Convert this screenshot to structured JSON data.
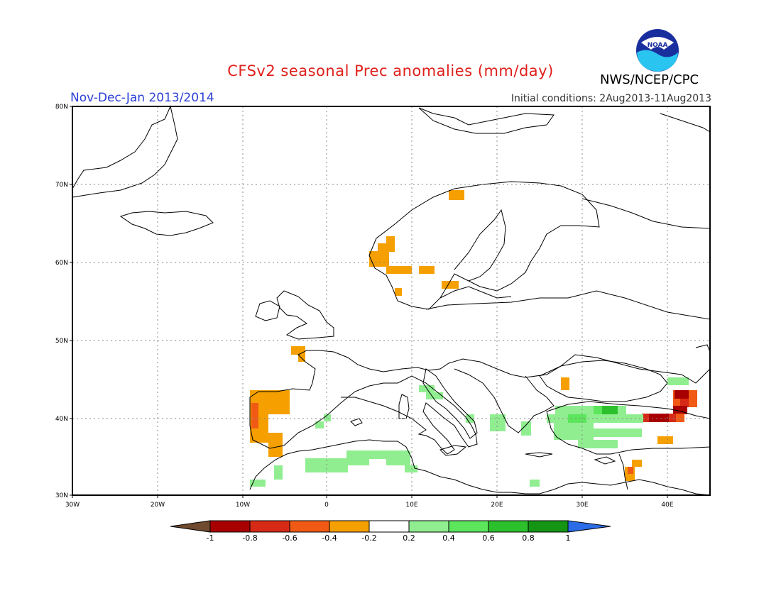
{
  "header": {
    "title": "CFSv2 seasonal Prec anomalies (mm/day)",
    "period": "Nov-Dec-Jan 2013/2014",
    "initial_conditions": "Initial conditions: 2Aug2013-11Aug2013",
    "agency": "NWS/NCEP/CPC",
    "logo_text": "NOAA"
  },
  "map": {
    "lat_labels": [
      "80N",
      "70N",
      "60N",
      "50N",
      "40N",
      "30N"
    ],
    "lon_labels": [
      "30W",
      "20W",
      "10W",
      "0",
      "10E",
      "20E",
      "30E",
      "40E"
    ]
  },
  "legend": {
    "tick_labels": [
      "-1",
      "-0.8",
      "-0.6",
      "-0.4",
      "-0.2",
      "0.2",
      "0.4",
      "0.6",
      "0.8",
      "1"
    ],
    "colors": [
      "#6f4a2e",
      "#a80000",
      "#d62a16",
      "#f05a14",
      "#f5a000",
      "#ffffff",
      "#90ee90",
      "#5ce65c",
      "#2cc02c",
      "#149614",
      "#2c6ce6"
    ]
  },
  "colors": {
    "dry_moderate": "#f5a000",
    "dry_strong": "#f05a14",
    "dry_very_strong": "#d62a16",
    "dry_extreme": "#a80000",
    "wet_light": "#90ee90",
    "wet_moderate": "#5ce65c",
    "wet_strong": "#2cc02c"
  }
}
